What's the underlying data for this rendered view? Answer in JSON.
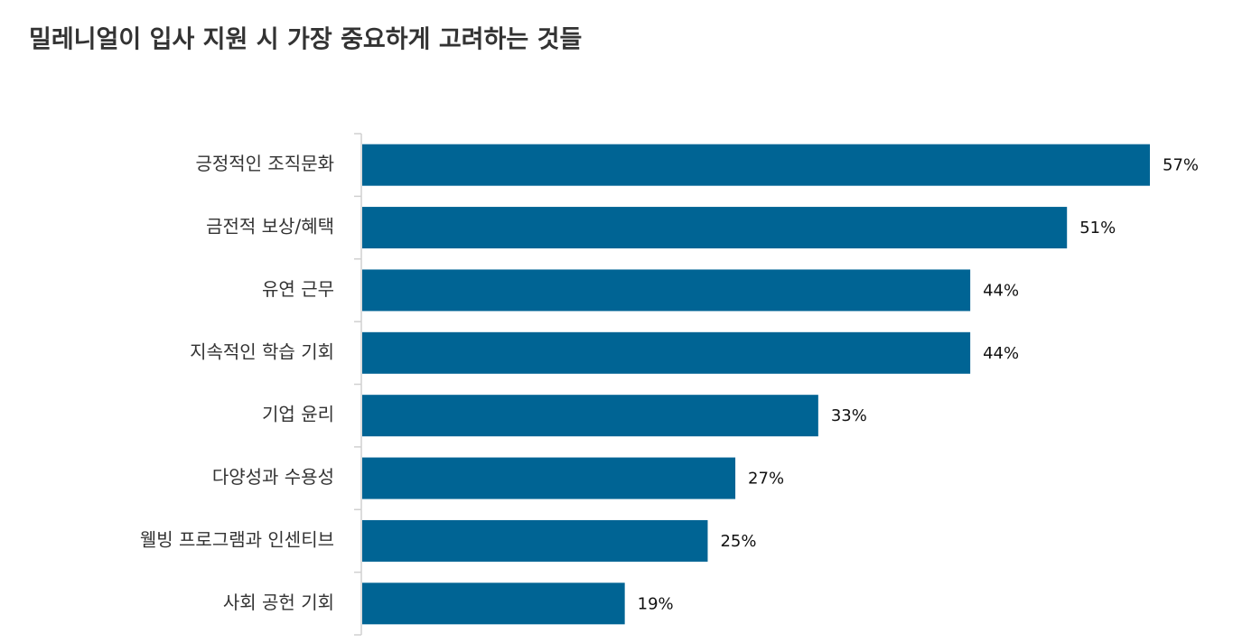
{
  "chart_data": {
    "type": "bar",
    "orientation": "horizontal",
    "title": "밀레니얼이 입사 지원 시 가장 중요하게 고려하는 것들",
    "categories": [
      "긍정적인 조직문화",
      "금전적 보상/혜택",
      "유연 근무",
      "지속적인 학습 기회",
      "기업 윤리",
      "다양성과 수용성",
      "웰빙 프로그램과 인센티브",
      "사회 공헌 기회"
    ],
    "values": [
      57,
      51,
      44,
      44,
      33,
      27,
      25,
      19
    ],
    "value_labels": [
      "57%",
      "51%",
      "44%",
      "44%",
      "33%",
      "27%",
      "25%",
      "19%"
    ],
    "color": "#006494"
  }
}
